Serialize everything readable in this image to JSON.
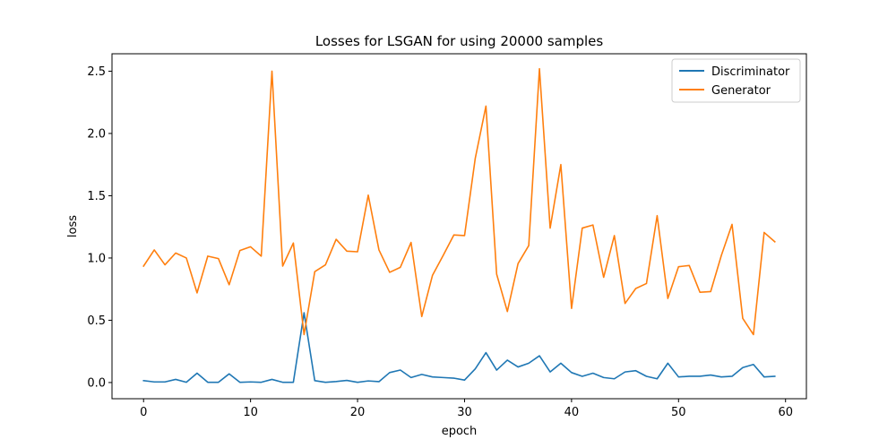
{
  "chart_data": {
    "type": "line",
    "title": "Losses for LSGAN for using 20000 samples",
    "xlabel": "epoch",
    "ylabel": "loss",
    "xlim": [
      -2.95,
      61.95
    ],
    "ylim": [
      -0.13,
      2.64
    ],
    "xticks": [
      0,
      10,
      20,
      30,
      40,
      50,
      60
    ],
    "yticks": [
      0.0,
      0.5,
      1.0,
      1.5,
      2.0,
      2.5
    ],
    "ytick_labels": [
      "0.0",
      "0.5",
      "1.0",
      "1.5",
      "2.0",
      "2.5"
    ],
    "grid": false,
    "legend": "top-right",
    "x": [
      0,
      1,
      2,
      3,
      4,
      5,
      6,
      7,
      8,
      9,
      10,
      11,
      12,
      13,
      14,
      15,
      16,
      17,
      18,
      19,
      20,
      21,
      22,
      23,
      24,
      25,
      26,
      27,
      28,
      29,
      30,
      31,
      32,
      33,
      34,
      35,
      36,
      37,
      38,
      39,
      40,
      41,
      42,
      43,
      44,
      45,
      46,
      47,
      48,
      49,
      50,
      51,
      52,
      53,
      54,
      55,
      56,
      57,
      58,
      59
    ],
    "series": [
      {
        "name": "Discriminator",
        "color": "#1f77b4",
        "values": [
          0.015,
          0.005,
          0.005,
          0.025,
          0.002,
          0.075,
          0.002,
          0.002,
          0.07,
          0.002,
          0.005,
          0.002,
          0.025,
          0.002,
          0.002,
          0.56,
          0.015,
          0.002,
          0.008,
          0.017,
          0.002,
          0.013,
          0.007,
          0.08,
          0.1,
          0.04,
          0.065,
          0.045,
          0.04,
          0.035,
          0.02,
          0.11,
          0.24,
          0.1,
          0.18,
          0.125,
          0.155,
          0.215,
          0.085,
          0.155,
          0.08,
          0.05,
          0.075,
          0.04,
          0.03,
          0.085,
          0.095,
          0.05,
          0.03,
          0.155,
          0.045,
          0.05,
          0.05,
          0.06,
          0.045,
          0.05,
          0.12,
          0.145,
          0.045,
          0.05
        ]
      },
      {
        "name": "Generator",
        "color": "#ff7f0e",
        "values": [
          0.935,
          1.065,
          0.945,
          1.04,
          1.0,
          0.72,
          1.015,
          0.995,
          0.785,
          1.06,
          1.09,
          1.015,
          2.5,
          0.935,
          1.12,
          0.385,
          0.89,
          0.945,
          1.15,
          1.055,
          1.05,
          1.505,
          1.065,
          0.885,
          0.925,
          1.125,
          0.53,
          0.86,
          1.02,
          1.185,
          1.18,
          1.8,
          2.22,
          0.87,
          0.57,
          0.955,
          1.1,
          2.52,
          1.24,
          1.75,
          0.595,
          1.24,
          1.265,
          0.845,
          1.18,
          0.635,
          0.755,
          0.795,
          1.34,
          0.675,
          0.93,
          0.94,
          0.725,
          0.73,
          1.02,
          1.27,
          0.515,
          0.385,
          1.205,
          1.13
        ]
      }
    ]
  }
}
